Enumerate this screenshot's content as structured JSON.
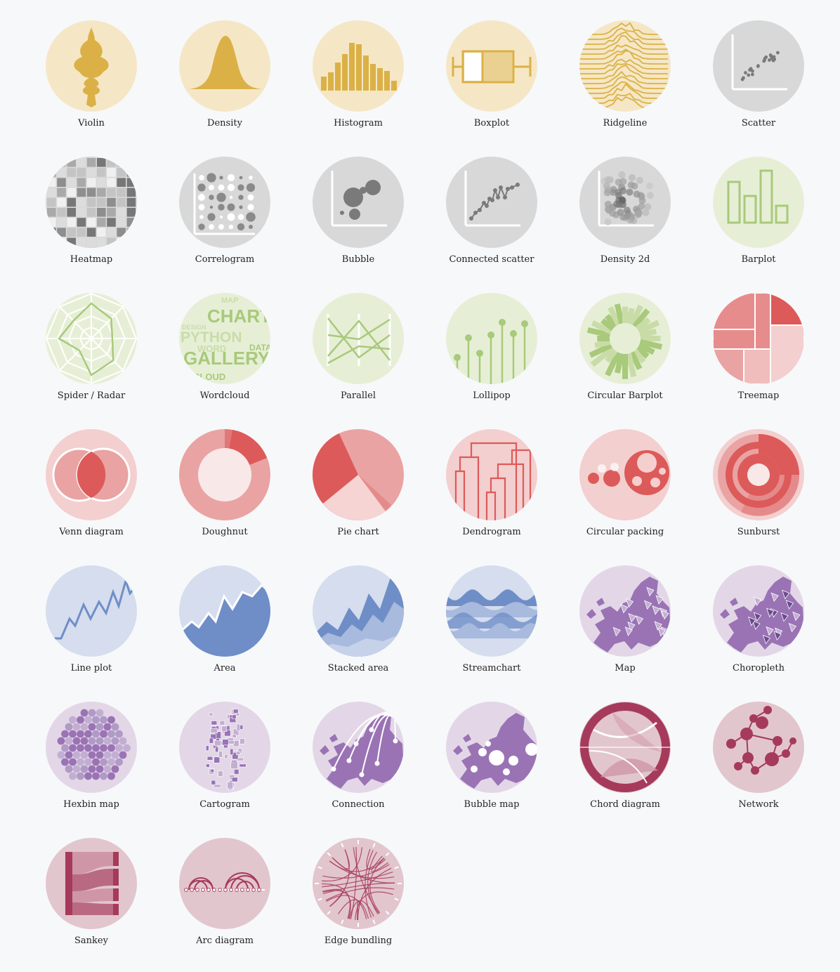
{
  "palette": {
    "yellow": {
      "bg": "#f5e7c6",
      "fg": "#dbb147",
      "light": "#ebd191"
    },
    "grey": {
      "bg": "#d8d8d8",
      "fg": "#7a7a7a",
      "light": "#b9b9b9"
    },
    "green": {
      "bg": "#e6efd6",
      "fg": "#a9c97b",
      "light": "#c9dca8"
    },
    "red": {
      "bg": "#f3cfcf",
      "fg": "#dd5a5a",
      "light": "#e9a3a3"
    },
    "blue": {
      "bg": "#d5ddee",
      "fg": "#6f8ec7",
      "light": "#a8badd"
    },
    "purple": {
      "bg": "#e3d7e7",
      "fg": "#9a73b5",
      "light": "#c3aed3"
    },
    "wine": {
      "bg": "#e2c6cd",
      "fg": "#a63a5b",
      "light": "#cf96a6"
    }
  },
  "items": [
    {
      "label": "Violin",
      "icon": "violin-icon",
      "color": "yellow"
    },
    {
      "label": "Density",
      "icon": "density-icon",
      "color": "yellow"
    },
    {
      "label": "Histogram",
      "icon": "histogram-icon",
      "color": "yellow"
    },
    {
      "label": "Boxplot",
      "icon": "boxplot-icon",
      "color": "yellow"
    },
    {
      "label": "Ridgeline",
      "icon": "ridgeline-icon",
      "color": "yellow"
    },
    {
      "label": "Scatter",
      "icon": "scatter-icon",
      "color": "grey"
    },
    {
      "label": "Heatmap",
      "icon": "heatmap-icon",
      "color": "grey"
    },
    {
      "label": "Correlogram",
      "icon": "correlogram-icon",
      "color": "grey"
    },
    {
      "label": "Bubble",
      "icon": "bubble-icon",
      "color": "grey"
    },
    {
      "label": "Connected scatter",
      "icon": "connected-scatter-icon",
      "color": "grey"
    },
    {
      "label": "Density 2d",
      "icon": "density-2d-icon",
      "color": "grey"
    },
    {
      "label": "Barplot",
      "icon": "barplot-icon",
      "color": "green"
    },
    {
      "label": "Spider / Radar",
      "icon": "radar-icon",
      "color": "green"
    },
    {
      "label": "Wordcloud",
      "icon": "wordcloud-icon",
      "color": "green",
      "words": [
        "MAP",
        "CHART",
        "PYTHON",
        "GALLERY",
        "WORD",
        "CLOUD",
        "DESIGN",
        "DATA"
      ]
    },
    {
      "label": "Parallel",
      "icon": "parallel-icon",
      "color": "green"
    },
    {
      "label": "Lollipop",
      "icon": "lollipop-icon",
      "color": "green"
    },
    {
      "label": "Circular Barplot",
      "icon": "circular-barplot-icon",
      "color": "green"
    },
    {
      "label": "Treemap",
      "icon": "treemap-icon",
      "color": "red"
    },
    {
      "label": "Venn diagram",
      "icon": "venn-icon",
      "color": "red"
    },
    {
      "label": "Doughnut",
      "icon": "doughnut-icon",
      "color": "red"
    },
    {
      "label": "Pie chart",
      "icon": "pie-icon",
      "color": "red"
    },
    {
      "label": "Dendrogram",
      "icon": "dendrogram-icon",
      "color": "red"
    },
    {
      "label": "Circular packing",
      "icon": "circular-packing-icon",
      "color": "red"
    },
    {
      "label": "Sunburst",
      "icon": "sunburst-icon",
      "color": "red"
    },
    {
      "label": "Line plot",
      "icon": "line-icon",
      "color": "blue"
    },
    {
      "label": "Area",
      "icon": "area-icon",
      "color": "blue"
    },
    {
      "label": "Stacked area",
      "icon": "stacked-area-icon",
      "color": "blue"
    },
    {
      "label": "Streamchart",
      "icon": "streamchart-icon",
      "color": "blue"
    },
    {
      "label": "Map",
      "icon": "map-icon",
      "color": "purple"
    },
    {
      "label": "Choropleth",
      "icon": "choropleth-icon",
      "color": "purple"
    },
    {
      "label": "Hexbin map",
      "icon": "hexbin-map-icon",
      "color": "purple"
    },
    {
      "label": "Cartogram",
      "icon": "cartogram-icon",
      "color": "purple"
    },
    {
      "label": "Connection",
      "icon": "connection-map-icon",
      "color": "purple"
    },
    {
      "label": "Bubble map",
      "icon": "bubble-map-icon",
      "color": "purple"
    },
    {
      "label": "Chord diagram",
      "icon": "chord-icon",
      "color": "wine"
    },
    {
      "label": "Network",
      "icon": "network-icon",
      "color": "wine"
    },
    {
      "label": "Sankey",
      "icon": "sankey-icon",
      "color": "wine"
    },
    {
      "label": "Arc diagram",
      "icon": "arc-diagram-icon",
      "color": "wine"
    },
    {
      "label": "Edge bundling",
      "icon": "edge-bundling-icon",
      "color": "wine"
    }
  ]
}
